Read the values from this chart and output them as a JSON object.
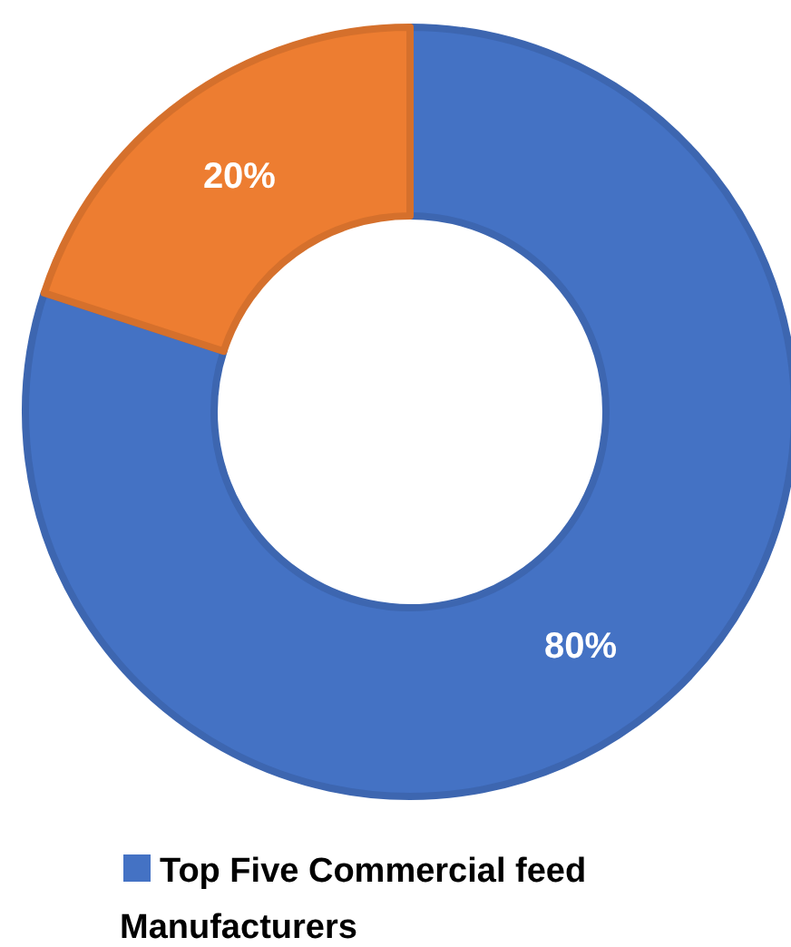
{
  "chart_data": {
    "type": "donut",
    "categories": [
      "Top Five Commercial feed Manufacturers",
      null
    ],
    "values": [
      80,
      20
    ],
    "value_labels": [
      "80%",
      "20%"
    ],
    "colors": [
      "#4472c4",
      "#ed7d31"
    ],
    "legend": "bottom"
  }
}
